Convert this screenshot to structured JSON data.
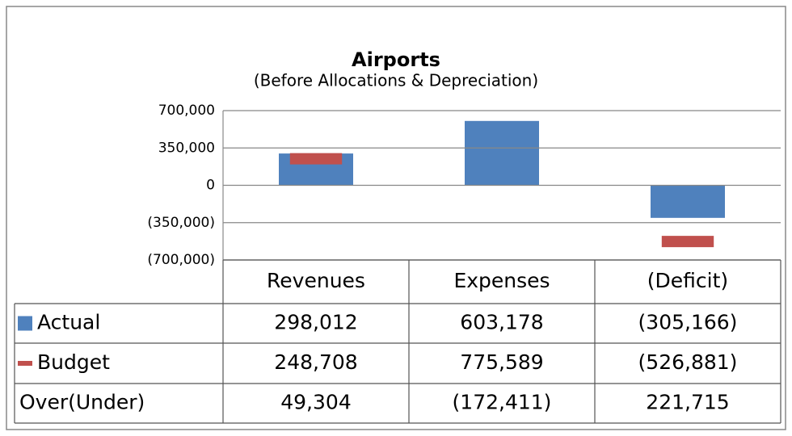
{
  "chart_data": {
    "type": "bar",
    "title": "Airports",
    "subtitle": "(Before Allocations & Depreciation)",
    "categories": [
      "Revenues",
      "Expenses",
      "(Deficit)"
    ],
    "series": [
      {
        "name": "Actual",
        "color": "#4f81bd",
        "marker": "bar",
        "values": [
          298012,
          603178,
          -305166
        ],
        "value_labels": [
          "298,012",
          "603,178",
          "(305,166)"
        ]
      },
      {
        "name": "Budget",
        "color": "#c0504d",
        "marker": "dash",
        "values": [
          248708,
          775589,
          -526881
        ],
        "value_labels": [
          "248,708",
          "775,589",
          "(526,881)"
        ]
      }
    ],
    "over_under": {
      "name": "Over(Under)",
      "values": [
        49304,
        -172411,
        221715
      ],
      "value_labels": [
        "49,304",
        "(172,411)",
        "221,715"
      ]
    },
    "ylim": [
      -700000,
      700000
    ],
    "yticks": [
      {
        "value": -700000,
        "label": "(700,000)"
      },
      {
        "value": -350000,
        "label": "(350,000)"
      },
      0,
      {
        "value": 350000,
        "label": "350,000"
      },
      {
        "value": 700000,
        "label": "700,000"
      }
    ],
    "grid": true
  }
}
